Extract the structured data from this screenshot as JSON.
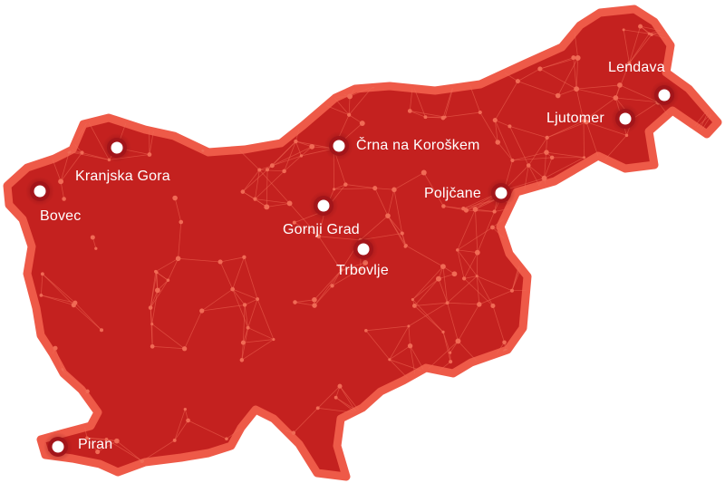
{
  "colors": {
    "land": "#c4211f",
    "border": "#ee5a48",
    "network": "#f06a55",
    "marker_ring": "#a3151a",
    "marker_center": "#ffffff"
  },
  "cities": [
    {
      "name": "Lendava",
      "icon": "location-marker-icon"
    },
    {
      "name": "Ljutomer",
      "icon": "location-marker-icon"
    },
    {
      "name": "Črna na Koroškem",
      "icon": "location-marker-icon"
    },
    {
      "name": "Kranjska Gora",
      "icon": "location-marker-icon"
    },
    {
      "name": "Bovec",
      "icon": "location-marker-icon"
    },
    {
      "name": "Poljčane",
      "icon": "location-marker-icon"
    },
    {
      "name": "Gornji Grad",
      "icon": "location-marker-icon"
    },
    {
      "name": "Trbovlje",
      "icon": "location-marker-icon"
    },
    {
      "name": "Piran",
      "icon": "location-marker-icon"
    }
  ]
}
